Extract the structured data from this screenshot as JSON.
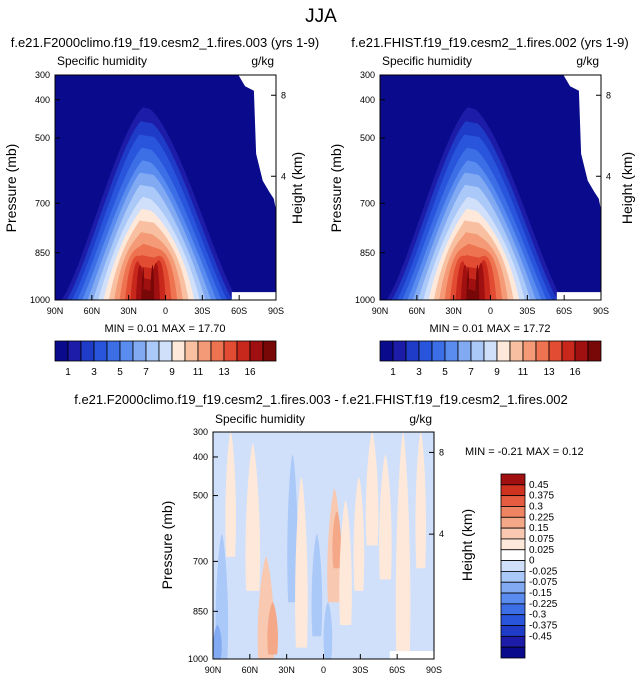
{
  "figure_title": "JJA",
  "chart_data": [
    {
      "type": "heatmap",
      "title": "f.e21.F2000climo.f19_f19.cesm2_1.fires.003 (yrs 1-9)",
      "left_label": "Specific humidity",
      "right_label": "g/kg",
      "ylabel": "Pressure (mb)",
      "ylabel_right": "Height (km)",
      "x_ticks": [
        "90N",
        "60N",
        "30N",
        "0",
        "30S",
        "60S",
        "90S"
      ],
      "y_ticks": [
        "300",
        "400",
        "500",
        "700",
        "850",
        "1000"
      ],
      "y_ticks_right": [
        "8",
        "4"
      ],
      "stats": "MIN =  0.01  MAX = 17.70",
      "colorbar_labels": [
        "1",
        "3",
        "5",
        "7",
        "9",
        "11",
        "13",
        "16"
      ],
      "peak_value": 17.7,
      "peak_location": "about 10N near 1000 mb"
    },
    {
      "type": "heatmap",
      "title": "f.e21.FHIST.f19_f19.cesm2_1.fires.002 (yrs 1-9)",
      "left_label": "Specific humidity",
      "right_label": "g/kg",
      "ylabel": "Pressure (mb)",
      "ylabel_right": "Height (km)",
      "x_ticks": [
        "90N",
        "60N",
        "30N",
        "0",
        "30S",
        "60S",
        "90S"
      ],
      "y_ticks": [
        "300",
        "400",
        "500",
        "700",
        "850",
        "1000"
      ],
      "y_ticks_right": [
        "8",
        "4"
      ],
      "stats": "MIN =  0.01  MAX = 17.72",
      "colorbar_labels": [
        "1",
        "3",
        "5",
        "7",
        "9",
        "11",
        "13",
        "16"
      ],
      "peak_value": 17.72,
      "peak_location": "about 10N near 1000 mb"
    },
    {
      "type": "heatmap",
      "title": "f.e21.F2000climo.f19_f19.cesm2_1.fires.003 - f.e21.FHIST.f19_f19.cesm2_1.fires.002",
      "left_label": "Specific humidity",
      "right_label": "g/kg",
      "ylabel": "Pressure (mb)",
      "ylabel_right": "Height (km)",
      "x_ticks": [
        "90N",
        "60N",
        "30N",
        "0",
        "30S",
        "60S",
        "90S"
      ],
      "y_ticks": [
        "300",
        "400",
        "500",
        "700",
        "850",
        "1000"
      ],
      "y_ticks_right": [
        "8",
        "4"
      ],
      "stats": "MIN = -0.21  MAX =   0.12",
      "colorbar_labels": [
        "0.45",
        "0.375",
        "0.3",
        "0.225",
        "0.15",
        "0.075",
        "0.025",
        "0",
        "-0.025",
        "-0.075",
        "-0.15",
        "-0.225",
        "-0.3",
        "-0.375",
        "-0.45"
      ],
      "min_value": -0.21,
      "max_value": 0.12
    }
  ],
  "palettes": {
    "main": [
      "#0a0a8c",
      "#1c1ca8",
      "#1e3cc8",
      "#2855dc",
      "#3c6ee6",
      "#5a8cf0",
      "#82aaf2",
      "#aac8f8",
      "#d0e0fa",
      "#fde8da",
      "#f8c0a0",
      "#f49a76",
      "#ee7350",
      "#e24c32",
      "#c8281c",
      "#a01010",
      "#780808"
    ],
    "diff": [
      "#0a0a8c",
      "#1c1ca8",
      "#1e3cc8",
      "#2855dc",
      "#3c6ee6",
      "#5a8cf0",
      "#82aaf2",
      "#aac8f8",
      "#d0e0fa",
      "#ffffff",
      "#fde8da",
      "#f8c8b0",
      "#f4a888",
      "#ee8462",
      "#e65c40",
      "#d03220",
      "#a01010"
    ]
  }
}
